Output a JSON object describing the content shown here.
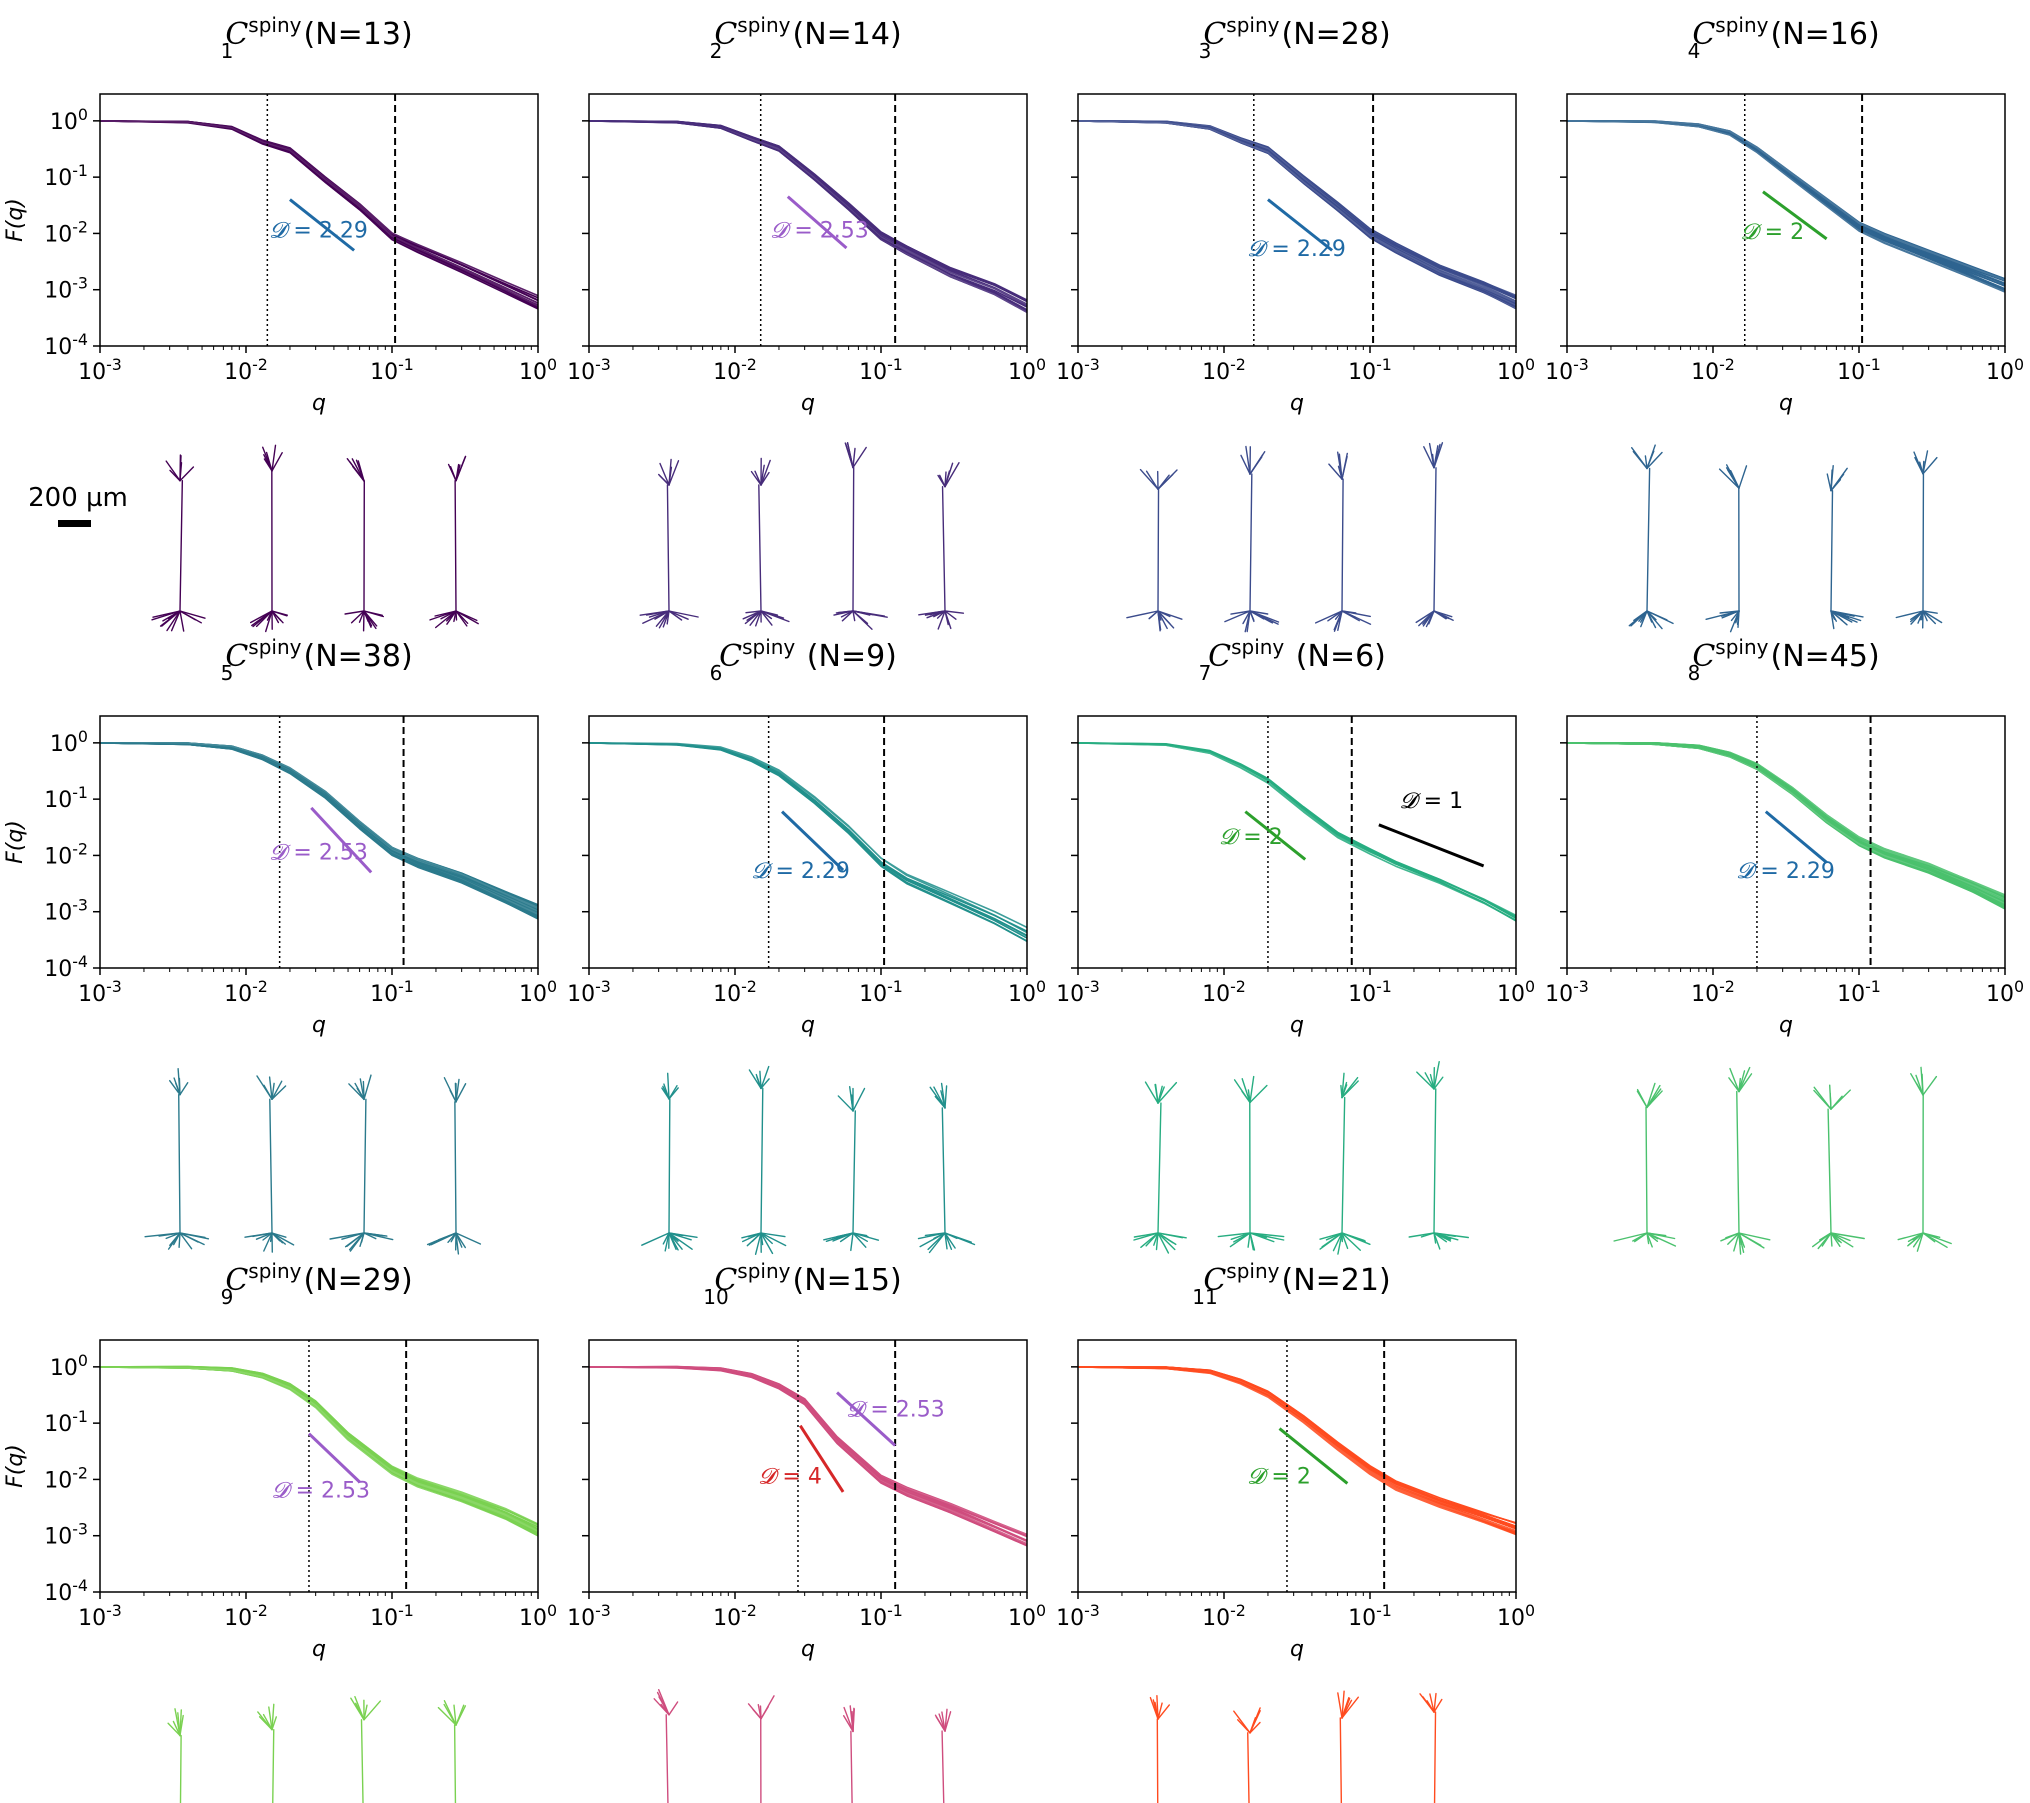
{
  "figure": {
    "scale_bar": {
      "label": "200 µm"
    },
    "axis_labels": {
      "ylabel": "F(q)",
      "xlabel": "q"
    },
    "tick_labels": {
      "x": [
        "10-3",
        "10-2",
        "10-1",
        "100"
      ],
      "y": [
        "100",
        "10-1",
        "10-2",
        "10-3",
        "10-4"
      ]
    },
    "dimension_symbol": "𝓓"
  },
  "chart_data": [
    {
      "type": "line",
      "title_sub": "1",
      "title_sup": "spiny",
      "title_n": "(N=13)",
      "color": "#440154",
      "xscale": "log",
      "yscale": "log",
      "xlim": [
        0.001,
        1
      ],
      "ylim": [
        0.0001,
        3
      ],
      "vlines": {
        "dotted": 0.014,
        "dashed": 0.105
      },
      "n_curves": 13,
      "series_template": {
        "x": [
          0.001,
          0.004,
          0.008,
          0.013,
          0.02,
          0.035,
          0.06,
          0.1,
          0.15,
          0.3,
          0.6,
          1
        ],
        "y": [
          1,
          0.95,
          0.75,
          0.42,
          0.3,
          0.09,
          0.03,
          0.009,
          0.0055,
          0.0025,
          0.0011,
          0.0006
        ]
      },
      "slope_refs": [
        {
          "label": "= 2.29",
          "color": "#1f6aa5",
          "x1": 0.02,
          "x2": 0.055,
          "y1": 0.04,
          "y2": 0.005,
          "lx": 0.0145,
          "ly": 0.0085
        }
      ]
    },
    {
      "type": "line",
      "title_sub": "2",
      "title_sup": "spiny",
      "title_n": "(N=14)",
      "color": "#472c7a",
      "xscale": "log",
      "yscale": "log",
      "xlim": [
        0.001,
        1
      ],
      "ylim": [
        0.0001,
        3
      ],
      "vlines": {
        "dotted": 0.015,
        "dashed": 0.125
      },
      "n_curves": 14,
      "series_template": {
        "x": [
          0.001,
          0.004,
          0.008,
          0.013,
          0.02,
          0.035,
          0.06,
          0.1,
          0.15,
          0.3,
          0.6,
          1
        ],
        "y": [
          1,
          0.95,
          0.78,
          0.48,
          0.32,
          0.1,
          0.03,
          0.009,
          0.005,
          0.002,
          0.001,
          0.0005
        ]
      },
      "slope_refs": [
        {
          "label": "= 2.53",
          "color": "#9a5cc9",
          "x1": 0.023,
          "x2": 0.058,
          "y1": 0.045,
          "y2": 0.0055,
          "lx": 0.0175,
          "ly": 0.0085
        }
      ]
    },
    {
      "type": "line",
      "title_sub": "3",
      "title_sup": "spiny",
      "title_n": "(N=28)",
      "color": "#3b4b8c",
      "xscale": "log",
      "yscale": "log",
      "xlim": [
        0.001,
        1
      ],
      "ylim": [
        0.0001,
        3
      ],
      "vlines": {
        "dotted": 0.016,
        "dashed": 0.105
      },
      "n_curves": 28,
      "series_template": {
        "x": [
          0.001,
          0.004,
          0.008,
          0.013,
          0.02,
          0.035,
          0.06,
          0.1,
          0.15,
          0.3,
          0.6,
          1
        ],
        "y": [
          1,
          0.95,
          0.76,
          0.45,
          0.3,
          0.09,
          0.03,
          0.01,
          0.0055,
          0.0022,
          0.0011,
          0.0006
        ]
      },
      "slope_refs": [
        {
          "label": "= 2.29",
          "color": "#1f6aa5",
          "x1": 0.02,
          "x2": 0.055,
          "y1": 0.04,
          "y2": 0.005,
          "lx": 0.0145,
          "ly": 0.004
        }
      ]
    },
    {
      "type": "line",
      "title_sub": "4",
      "title_sup": "spiny",
      "title_n": "(N=16)",
      "color": "#2e6490",
      "xscale": "log",
      "yscale": "log",
      "xlim": [
        0.001,
        1
      ],
      "ylim": [
        0.0001,
        3
      ],
      "vlines": {
        "dotted": 0.0165,
        "dashed": 0.105
      },
      "n_curves": 16,
      "series_template": {
        "x": [
          0.001,
          0.004,
          0.008,
          0.013,
          0.02,
          0.035,
          0.06,
          0.1,
          0.15,
          0.3,
          0.6,
          1
        ],
        "y": [
          1,
          0.96,
          0.82,
          0.6,
          0.3,
          0.1,
          0.035,
          0.013,
          0.008,
          0.004,
          0.002,
          0.0012
        ]
      },
      "slope_refs": [
        {
          "label": "= 2",
          "color": "#2ca02c",
          "x1": 0.022,
          "x2": 0.06,
          "y1": 0.055,
          "y2": 0.008,
          "lx": 0.0155,
          "ly": 0.008
        }
      ]
    },
    {
      "type": "line",
      "title_sub": "5",
      "title_sup": "spiny",
      "title_n": "(N=38)",
      "color": "#2b7a8c",
      "xscale": "log",
      "yscale": "log",
      "xlim": [
        0.001,
        1
      ],
      "ylim": [
        0.0001,
        3
      ],
      "vlines": {
        "dotted": 0.017,
        "dashed": 0.12
      },
      "n_curves": 38,
      "series_template": {
        "x": [
          0.001,
          0.004,
          0.008,
          0.013,
          0.02,
          0.035,
          0.06,
          0.1,
          0.15,
          0.3,
          0.6,
          1
        ],
        "y": [
          1,
          0.96,
          0.82,
          0.55,
          0.32,
          0.12,
          0.035,
          0.012,
          0.0075,
          0.004,
          0.0018,
          0.001
        ]
      },
      "slope_refs": [
        {
          "label": "= 2.53",
          "color": "#9a5cc9",
          "x1": 0.028,
          "x2": 0.072,
          "y1": 0.07,
          "y2": 0.005,
          "lx": 0.0145,
          "ly": 0.0085
        }
      ]
    },
    {
      "type": "line",
      "title_sub": "6",
      "title_sup": "spiny",
      "title_n": " (N=9)",
      "color": "#21908c",
      "xscale": "log",
      "yscale": "log",
      "xlim": [
        0.001,
        1
      ],
      "ylim": [
        0.0001,
        3
      ],
      "vlines": {
        "dotted": 0.017,
        "dashed": 0.105
      },
      "n_curves": 9,
      "series_template": {
        "x": [
          0.001,
          0.004,
          0.008,
          0.013,
          0.02,
          0.035,
          0.06,
          0.1,
          0.15,
          0.3,
          0.6,
          1
        ],
        "y": [
          1,
          0.95,
          0.8,
          0.52,
          0.3,
          0.1,
          0.03,
          0.008,
          0.004,
          0.0018,
          0.0008,
          0.0004
        ]
      },
      "slope_refs": [
        {
          "label": "= 2.29",
          "color": "#1f6aa5",
          "x1": 0.021,
          "x2": 0.055,
          "y1": 0.06,
          "y2": 0.0055,
          "lx": 0.013,
          "ly": 0.004
        }
      ]
    },
    {
      "type": "line",
      "title_sub": "7",
      "title_sup": "spiny",
      "title_n": " (N=6)",
      "color": "#27ad81",
      "xscale": "log",
      "yscale": "log",
      "xlim": [
        0.001,
        1
      ],
      "ylim": [
        0.0001,
        3
      ],
      "vlines": {
        "dotted": 0.02,
        "dashed": 0.075
      },
      "n_curves": 6,
      "series_template": {
        "x": [
          0.001,
          0.004,
          0.008,
          0.013,
          0.02,
          0.035,
          0.06,
          0.1,
          0.15,
          0.3,
          0.6,
          1
        ],
        "y": [
          1,
          0.94,
          0.7,
          0.4,
          0.22,
          0.07,
          0.025,
          0.013,
          0.008,
          0.004,
          0.0018,
          0.0009
        ]
      },
      "slope_refs": [
        {
          "label": "= 2",
          "color": "#2ca02c",
          "x1": 0.014,
          "x2": 0.036,
          "y1": 0.06,
          "y2": 0.0085,
          "lx": 0.0093,
          "ly": 0.016
        },
        {
          "label": "= 1",
          "color": "#000000",
          "x1": 0.115,
          "x2": 0.6,
          "y1": 0.035,
          "y2": 0.0065,
          "lx": 0.16,
          "ly": 0.07
        }
      ]
    },
    {
      "type": "line",
      "title_sub": "8",
      "title_sup": "spiny",
      "title_n": "(N=45)",
      "color": "#4ac16d",
      "xscale": "log",
      "yscale": "log",
      "xlim": [
        0.001,
        1
      ],
      "ylim": [
        0.0001,
        3
      ],
      "vlines": {
        "dotted": 0.02,
        "dashed": 0.12
      },
      "n_curves": 45,
      "series_template": {
        "x": [
          0.001,
          0.004,
          0.008,
          0.013,
          0.02,
          0.035,
          0.06,
          0.1,
          0.15,
          0.3,
          0.6,
          1
        ],
        "y": [
          1,
          0.97,
          0.85,
          0.62,
          0.38,
          0.14,
          0.045,
          0.018,
          0.011,
          0.006,
          0.0028,
          0.0015
        ]
      },
      "slope_refs": [
        {
          "label": "= 2.29",
          "color": "#1f6aa5",
          "x1": 0.023,
          "x2": 0.06,
          "y1": 0.06,
          "y2": 0.0075,
          "lx": 0.0145,
          "ly": 0.004
        }
      ]
    },
    {
      "type": "line",
      "title_sub": "9",
      "title_sup": "spiny",
      "title_n": "(N=29)",
      "color": "#7ad151",
      "xscale": "log",
      "yscale": "log",
      "xlim": [
        0.001,
        1
      ],
      "ylim": [
        0.0001,
        3
      ],
      "vlines": {
        "dotted": 0.027,
        "dashed": 0.125
      },
      "n_curves": 29,
      "series_template": {
        "x": [
          0.001,
          0.004,
          0.008,
          0.013,
          0.02,
          0.03,
          0.05,
          0.1,
          0.15,
          0.3,
          0.6,
          1
        ],
        "y": [
          1,
          0.98,
          0.9,
          0.7,
          0.45,
          0.22,
          0.06,
          0.015,
          0.009,
          0.005,
          0.0025,
          0.0013
        ]
      },
      "slope_refs": [
        {
          "label": "= 2.53",
          "color": "#9a5cc9",
          "x1": 0.027,
          "x2": 0.06,
          "y1": 0.065,
          "y2": 0.009,
          "lx": 0.015,
          "ly": 0.0048
        }
      ]
    },
    {
      "type": "line",
      "title_sub": "10",
      "title_sup": "spiny",
      "title_n": "(N=15)",
      "color": "#cf4d7e",
      "xscale": "log",
      "yscale": "log",
      "xlim": [
        0.001,
        1
      ],
      "ylim": [
        0.0001,
        3
      ],
      "vlines": {
        "dotted": 0.027,
        "dashed": 0.125
      },
      "n_curves": 15,
      "series_template": {
        "x": [
          0.001,
          0.004,
          0.008,
          0.013,
          0.02,
          0.03,
          0.05,
          0.1,
          0.15,
          0.3,
          0.6,
          1
        ],
        "y": [
          1,
          0.98,
          0.9,
          0.7,
          0.45,
          0.24,
          0.05,
          0.01,
          0.006,
          0.003,
          0.0014,
          0.0008
        ]
      },
      "slope_refs": [
        {
          "label": "= 2.53",
          "color": "#9a5cc9",
          "x1": 0.05,
          "x2": 0.125,
          "y1": 0.35,
          "y2": 0.04,
          "lx": 0.058,
          "ly": 0.13
        },
        {
          "label": "= 4",
          "color": "#d62728",
          "x1": 0.028,
          "x2": 0.055,
          "y1": 0.09,
          "y2": 0.006,
          "lx": 0.0145,
          "ly": 0.0085
        }
      ]
    },
    {
      "type": "line",
      "title_sub": "11",
      "title_sup": "spiny",
      "title_n": "(N=21)",
      "color": "#ff4b1f",
      "xscale": "log",
      "yscale": "log",
      "xlim": [
        0.001,
        1
      ],
      "ylim": [
        0.0001,
        3
      ],
      "vlines": {
        "dotted": 0.027,
        "dashed": 0.125
      },
      "n_curves": 21,
      "series_template": {
        "x": [
          0.001,
          0.004,
          0.008,
          0.013,
          0.02,
          0.035,
          0.06,
          0.1,
          0.15,
          0.3,
          0.6,
          1
        ],
        "y": [
          1,
          0.96,
          0.82,
          0.55,
          0.33,
          0.12,
          0.04,
          0.015,
          0.008,
          0.004,
          0.0022,
          0.0014
        ]
      },
      "slope_refs": [
        {
          "label": "= 2",
          "color": "#2ca02c",
          "x1": 0.024,
          "x2": 0.07,
          "y1": 0.08,
          "y2": 0.0085,
          "lx": 0.0145,
          "ly": 0.0085
        }
      ]
    }
  ]
}
